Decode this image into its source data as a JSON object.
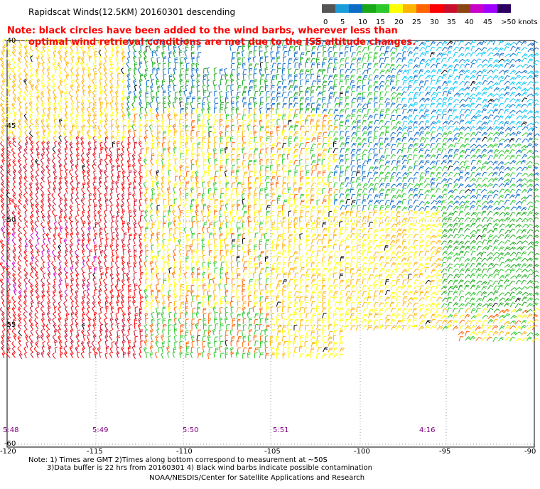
{
  "title": "Rapidscat Winds(12.5KM)  20160301  descending",
  "note": {
    "line1": "Note: black circles have been added to the wind barbs, wherever less than",
    "line2": "optimal wind retrieval conditions are met due to the ISS altitude changes."
  },
  "legend": {
    "colors": [
      "#555555",
      "#1c9cd8",
      "#0c6cc8",
      "#1aa81a",
      "#2cc82c",
      "#ffff00",
      "#ffb400",
      "#ff6400",
      "#ff0000",
      "#c8102e",
      "#8b4513",
      "#c800c8",
      "#a000ff",
      "#2a0060"
    ],
    "labels": [
      "0",
      "5",
      "10",
      "15",
      "20",
      "25",
      "30",
      "35",
      "40",
      "45",
      ">50 knots"
    ]
  },
  "latitudes": [
    "-40",
    "-45",
    "-50",
    "-55",
    "-60"
  ],
  "longitudes": [
    "-120",
    "-115",
    "-110",
    "-105",
    "-100",
    "-95",
    "-90"
  ],
  "times": [
    "5:48",
    "5:49",
    "5:50",
    "5:51",
    "4:16"
  ],
  "footer": {
    "line1": "Note: 1) Times are GMT 2)Times along bottom correspond to measurement at ~50S",
    "line2": "3)Data buffer is 22 hrs from 20160301 4) Black wind barbs indicate possible contamination",
    "line3": "NOAA/NESDIS/Center for Satellite Applications and Research"
  }
}
